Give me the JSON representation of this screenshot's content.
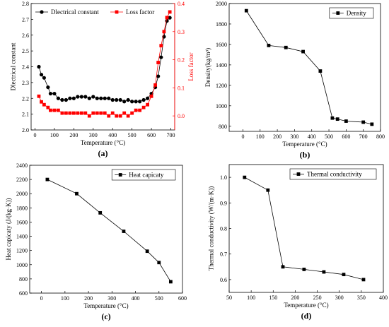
{
  "chart_data": [
    {
      "panel": "(a)",
      "type": "line",
      "xlabel": "Temperature (°C)",
      "xlim": [
        -20,
        720
      ],
      "xticks": [
        0,
        100,
        200,
        300,
        400,
        500,
        600,
        700
      ],
      "axes": {
        "left": {
          "label": "Dlectrical constant",
          "ylim": [
            2.0,
            2.8
          ],
          "ticks": [
            2.0,
            2.1,
            2.2,
            2.3,
            2.4,
            2.5,
            2.6,
            2.7,
            2.8
          ],
          "color": "#000000"
        },
        "right": {
          "label": "Loss factor",
          "ylim": [
            -0.05,
            0.4
          ],
          "ticks": [
            0.0,
            0.1,
            0.2,
            0.3,
            0.4
          ],
          "color": "#ff0000"
        }
      },
      "series": [
        {
          "name": "Dlectrical constant",
          "axis": "left",
          "marker": "circle",
          "color": "#000000",
          "points": [
            [
              20,
              2.4
            ],
            [
              33,
              2.35
            ],
            [
              47,
              2.33
            ],
            [
              67,
              2.27
            ],
            [
              80,
              2.23
            ],
            [
              100,
              2.23
            ],
            [
              120,
              2.2
            ],
            [
              140,
              2.19
            ],
            [
              160,
              2.19
            ],
            [
              180,
              2.2
            ],
            [
              200,
              2.2
            ],
            [
              220,
              2.21
            ],
            [
              240,
              2.21
            ],
            [
              260,
              2.21
            ],
            [
              280,
              2.2
            ],
            [
              300,
              2.21
            ],
            [
              320,
              2.2
            ],
            [
              340,
              2.2
            ],
            [
              360,
              2.2
            ],
            [
              380,
              2.2
            ],
            [
              400,
              2.19
            ],
            [
              420,
              2.19
            ],
            [
              440,
              2.19
            ],
            [
              460,
              2.18
            ],
            [
              480,
              2.19
            ],
            [
              500,
              2.18
            ],
            [
              520,
              2.18
            ],
            [
              540,
              2.18
            ],
            [
              560,
              2.19
            ],
            [
              580,
              2.2
            ],
            [
              600,
              2.23
            ],
            [
              620,
              2.27
            ],
            [
              635,
              2.34
            ],
            [
              650,
              2.46
            ],
            [
              665,
              2.59
            ],
            [
              680,
              2.69
            ],
            [
              695,
              2.71
            ]
          ]
        },
        {
          "name": "Loss factor",
          "axis": "right",
          "marker": "square",
          "color": "#ff0000",
          "points": [
            [
              20,
              0.07
            ],
            [
              33,
              0.05
            ],
            [
              47,
              0.04
            ],
            [
              67,
              0.03
            ],
            [
              80,
              0.02
            ],
            [
              100,
              0.02
            ],
            [
              120,
              0.02
            ],
            [
              140,
              0.01
            ],
            [
              160,
              0.01
            ],
            [
              180,
              0.01
            ],
            [
              200,
              0.01
            ],
            [
              220,
              0.01
            ],
            [
              240,
              0.01
            ],
            [
              260,
              0.01
            ],
            [
              280,
              0.0
            ],
            [
              300,
              0.01
            ],
            [
              320,
              0.01
            ],
            [
              340,
              0.01
            ],
            [
              360,
              0.01
            ],
            [
              380,
              0.0
            ],
            [
              400,
              0.01
            ],
            [
              420,
              0.0
            ],
            [
              440,
              0.0
            ],
            [
              460,
              0.01
            ],
            [
              480,
              0.0
            ],
            [
              500,
              0.01
            ],
            [
              520,
              0.02
            ],
            [
              540,
              0.02
            ],
            [
              560,
              0.03
            ],
            [
              580,
              0.04
            ],
            [
              600,
              0.07
            ],
            [
              620,
              0.11
            ],
            [
              635,
              0.19
            ],
            [
              650,
              0.25
            ],
            [
              665,
              0.3
            ],
            [
              680,
              0.35
            ],
            [
              695,
              0.37
            ]
          ]
        }
      ],
      "legend_position": "top"
    },
    {
      "panel": "(b)",
      "type": "line",
      "xlabel": "Temperature (°C)",
      "ylabel": "Density(kg/m³)",
      "xlim": [
        -80,
        800
      ],
      "ylim": [
        750,
        2000
      ],
      "xticks": [
        0,
        100,
        200,
        300,
        400,
        500,
        600,
        700,
        800
      ],
      "yticks": [
        800,
        1000,
        1200,
        1400,
        1600,
        1800,
        2000
      ],
      "series": [
        {
          "name": "Density",
          "marker": "square",
          "color": "#000000",
          "points": [
            [
              20,
              1930
            ],
            [
              150,
              1590
            ],
            [
              250,
              1570
            ],
            [
              350,
              1530
            ],
            [
              450,
              1340
            ],
            [
              520,
              880
            ],
            [
              550,
              870
            ],
            [
              600,
              850
            ],
            [
              700,
              840
            ],
            [
              750,
              820
            ]
          ]
        }
      ],
      "legend_position": "top-right"
    },
    {
      "panel": "(c)",
      "type": "line",
      "xlabel": "Temperature (°C)",
      "ylabel": "Heat capicaty (J/(kg·K))",
      "xlim": [
        -50,
        600
      ],
      "ylim": [
        600,
        2400
      ],
      "xticks": [
        0,
        100,
        200,
        300,
        400,
        500,
        600
      ],
      "yticks": [
        600,
        800,
        1000,
        1200,
        1400,
        1600,
        1800,
        2000,
        2200,
        2400
      ],
      "series": [
        {
          "name": "Heat capicaty",
          "marker": "square",
          "color": "#000000",
          "points": [
            [
              25,
              2200
            ],
            [
              150,
              2000
            ],
            [
              250,
              1730
            ],
            [
              350,
              1470
            ],
            [
              450,
              1190
            ],
            [
              500,
              1030
            ],
            [
              550,
              760
            ]
          ]
        }
      ],
      "legend_position": "top-right"
    },
    {
      "panel": "(d)",
      "type": "line",
      "xlabel": "Temperature (°C)",
      "ylabel": "Thermal conductivity (W/(m·K))",
      "xlim": [
        50,
        400
      ],
      "ylim": [
        0.55,
        1.05
      ],
      "xticks": [
        50,
        100,
        150,
        200,
        250,
        300,
        350,
        400
      ],
      "yticks": [
        0.6,
        0.7,
        0.8,
        0.9,
        1.0
      ],
      "series": [
        {
          "name": "Thermal conductivity",
          "marker": "square",
          "color": "#000000",
          "points": [
            [
              85,
              1.0
            ],
            [
              138,
              0.95
            ],
            [
              172,
              0.65
            ],
            [
              220,
              0.64
            ],
            [
              265,
              0.63
            ],
            [
              310,
              0.62
            ],
            [
              355,
              0.6
            ]
          ]
        }
      ],
      "legend_position": "top-right"
    }
  ]
}
